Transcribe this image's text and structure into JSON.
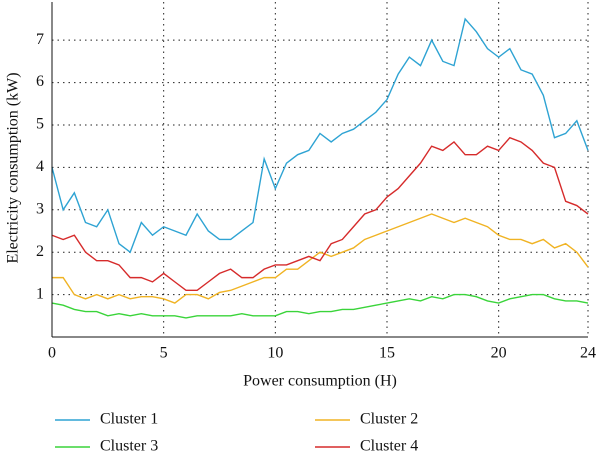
{
  "chart_data": {
    "type": "line",
    "x_label": "Power consumption (H)",
    "y_label": "Electricity consumption (kW)",
    "x": [
      0,
      0.5,
      1,
      1.5,
      2,
      2.5,
      3,
      3.5,
      4,
      4.5,
      5,
      5.5,
      6,
      6.5,
      7,
      7.5,
      8,
      8.5,
      9,
      9.5,
      10,
      10.5,
      11,
      11.5,
      12,
      12.5,
      13,
      13.5,
      14,
      14.5,
      15,
      15.5,
      16,
      16.5,
      17,
      17.5,
      18,
      18.5,
      19,
      19.5,
      20,
      20.5,
      21,
      21.5,
      22,
      22.5,
      23,
      23.5,
      24
    ],
    "series": [
      {
        "name": "Cluster 1",
        "color": "#2ea3d3",
        "values": [
          4.0,
          3.0,
          3.4,
          2.7,
          2.6,
          3.0,
          2.2,
          2.0,
          2.7,
          2.4,
          2.6,
          2.5,
          2.4,
          2.9,
          2.5,
          2.3,
          2.3,
          2.5,
          2.7,
          4.2,
          3.5,
          4.1,
          4.3,
          4.4,
          4.8,
          4.6,
          4.8,
          4.9,
          5.1,
          5.3,
          5.6,
          6.2,
          6.6,
          6.4,
          7.0,
          6.5,
          6.4,
          7.5,
          7.2,
          6.8,
          6.6,
          6.8,
          6.3,
          6.2,
          5.7,
          4.7,
          4.8,
          5.1,
          4.4
        ]
      },
      {
        "name": "Cluster 2",
        "color": "#f0b323",
        "values": [
          1.4,
          1.4,
          1.0,
          0.9,
          1.0,
          0.9,
          1.0,
          0.9,
          0.95,
          0.95,
          0.9,
          0.8,
          1.0,
          1.0,
          0.9,
          1.05,
          1.1,
          1.2,
          1.3,
          1.4,
          1.4,
          1.6,
          1.6,
          1.8,
          2.0,
          1.9,
          2.0,
          2.1,
          2.3,
          2.4,
          2.5,
          2.6,
          2.7,
          2.8,
          2.9,
          2.8,
          2.7,
          2.8,
          2.7,
          2.6,
          2.4,
          2.3,
          2.3,
          2.2,
          2.3,
          2.1,
          2.2,
          2.0,
          1.65
        ]
      },
      {
        "name": "Cluster 3",
        "color": "#3ad43a",
        "values": [
          0.8,
          0.75,
          0.65,
          0.6,
          0.6,
          0.5,
          0.55,
          0.5,
          0.55,
          0.5,
          0.5,
          0.5,
          0.45,
          0.5,
          0.5,
          0.5,
          0.5,
          0.55,
          0.5,
          0.5,
          0.5,
          0.6,
          0.6,
          0.55,
          0.6,
          0.6,
          0.65,
          0.65,
          0.7,
          0.75,
          0.8,
          0.85,
          0.9,
          0.85,
          0.95,
          0.9,
          1.0,
          1.0,
          0.95,
          0.85,
          0.8,
          0.9,
          0.95,
          1.0,
          1.0,
          0.9,
          0.85,
          0.85,
          0.8
        ]
      },
      {
        "name": "Cluster 4",
        "color": "#d62b2b",
        "values": [
          2.4,
          2.3,
          2.4,
          2.0,
          1.8,
          1.8,
          1.7,
          1.4,
          1.4,
          1.3,
          1.5,
          1.3,
          1.1,
          1.1,
          1.3,
          1.5,
          1.6,
          1.4,
          1.4,
          1.6,
          1.7,
          1.7,
          1.8,
          1.9,
          1.8,
          2.2,
          2.3,
          2.6,
          2.9,
          3.0,
          3.3,
          3.5,
          3.8,
          4.1,
          4.5,
          4.4,
          4.6,
          4.3,
          4.3,
          4.5,
          4.4,
          4.7,
          4.6,
          4.4,
          4.1,
          4.0,
          3.2,
          3.1,
          2.9
        ]
      }
    ],
    "xlim": [
      0,
      24
    ],
    "xticks": [
      0,
      5,
      10,
      15,
      20,
      24
    ],
    "ylim": [
      0,
      7.9
    ],
    "yticks": [
      1,
      2,
      3,
      4,
      5,
      6,
      7
    ],
    "grid": true,
    "legend": "bottom"
  }
}
